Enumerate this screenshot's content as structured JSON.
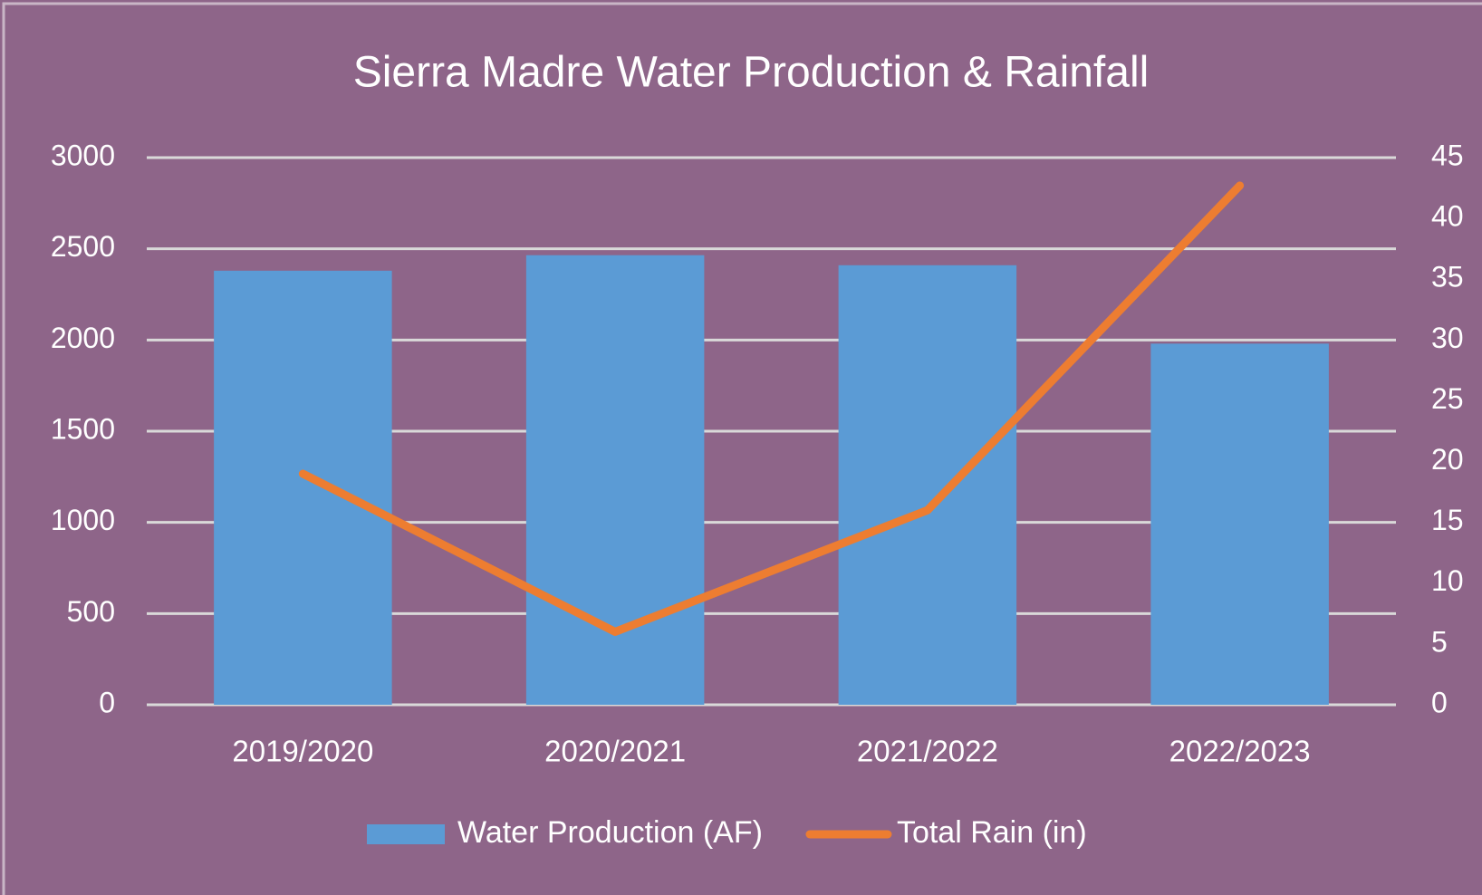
{
  "chart_data": {
    "type": "bar",
    "title": "Sierra Madre Water Production & Rainfall",
    "categories": [
      "2019/2020",
      "2020/2021",
      "2021/2022",
      "2022/2023"
    ],
    "series": [
      {
        "name": "Water Production (AF)",
        "type": "bar",
        "color": "#5b9bd5",
        "values": [
          2380,
          2465,
          2410,
          1980
        ]
      },
      {
        "name": "Total Rain (in)",
        "type": "line",
        "axis": "y2",
        "color": "#ed7d31",
        "values": [
          19,
          6,
          16,
          42.7
        ]
      }
    ],
    "ylim": [
      0,
      3000
    ],
    "yticks": [
      0,
      500,
      1000,
      1500,
      2000,
      2500,
      3000
    ],
    "y2lim": [
      0,
      45
    ],
    "y2ticks": [
      0,
      5,
      10,
      15,
      20,
      25,
      30,
      35,
      40,
      45
    ],
    "grid": true,
    "legend": "bottom"
  }
}
